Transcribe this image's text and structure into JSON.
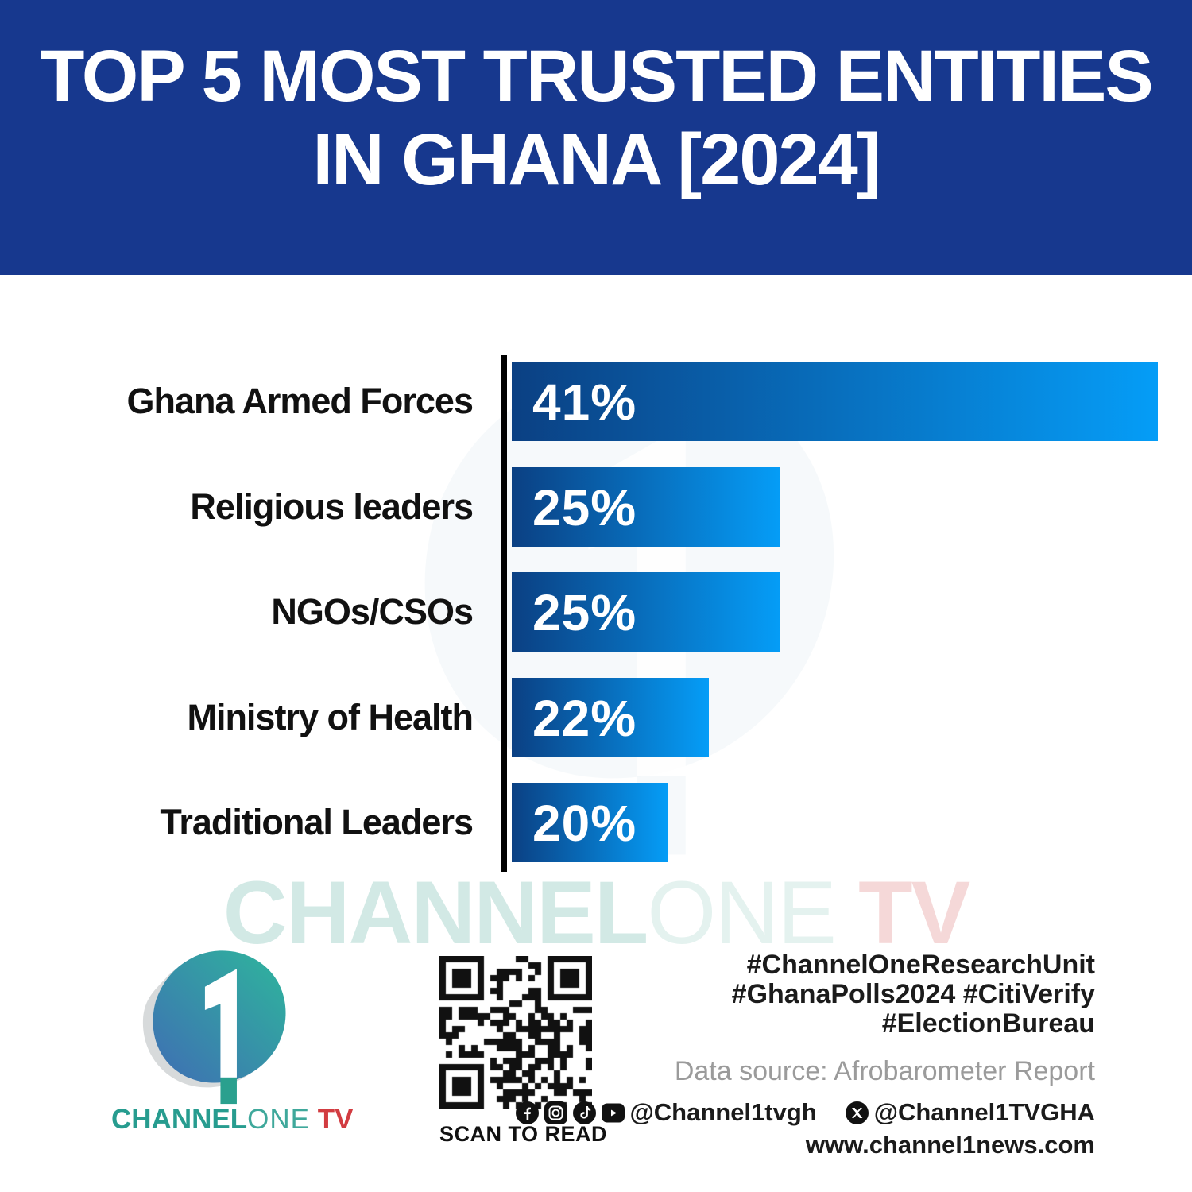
{
  "header": {
    "title_line1": "TOP 5 MOST TRUSTED ENTITIES",
    "title_line2": "IN GHANA [2024]",
    "bg_color": "#17388e",
    "text_color": "#ffffff"
  },
  "chart_data": {
    "type": "bar",
    "orientation": "horizontal",
    "title": "Top 5 Most Trusted Entities in Ghana [2024]",
    "categories": [
      "Ghana Armed Forces",
      "Religious leaders",
      "NGOs/CSOs",
      "Ministry of Health",
      "Traditional Leaders"
    ],
    "values": [
      41,
      25,
      25,
      22,
      20
    ],
    "unit": "%",
    "value_labels": [
      "41%",
      "25%",
      "25%",
      "22%",
      "20%"
    ],
    "display_widths_pct_of_bar_area": [
      95,
      39.5,
      39.5,
      29,
      23
    ],
    "bars_not_to_numeric_scale": true,
    "bar_gradient_left": "#0b4083",
    "bar_gradient_right": "#059df7",
    "axis_color": "#000000",
    "value_label_color": "#ffffff",
    "category_label_color": "#111111",
    "grid": "off",
    "legend": "none"
  },
  "watermark": {
    "part1": "CHANNEL",
    "part1_color": "#d2e9e5",
    "part2": "ONE",
    "part2_color": "#e4f2ef",
    "part3": " TV",
    "part3_color": "#f5d8d8"
  },
  "footer": {
    "logo": {
      "wordmark_channel": "CHANNEL",
      "wordmark_one": "ONE",
      "wordmark_tv": " TV",
      "channel_color": "#279c8f",
      "one_color": "#3fa89b",
      "tv_color": "#d23c41",
      "blob_gradient_left": "#3f6db4",
      "blob_gradient_right": "#2eb69c"
    },
    "qr_caption": "SCAN TO READ",
    "hashtags_lines": [
      "#ChannelOneResearchUnit",
      "#GhanaPolls2024 #CitiVerify",
      "#ElectionBureau"
    ],
    "data_source": "Data source: Afrobarometer Report",
    "social": {
      "platforms": [
        "facebook",
        "instagram",
        "tiktok",
        "youtube"
      ],
      "handle1": "@Channel1tvgh",
      "x_platform": "x",
      "handle2": "@Channel1TVGHA"
    },
    "website": "www.channel1news.com"
  }
}
